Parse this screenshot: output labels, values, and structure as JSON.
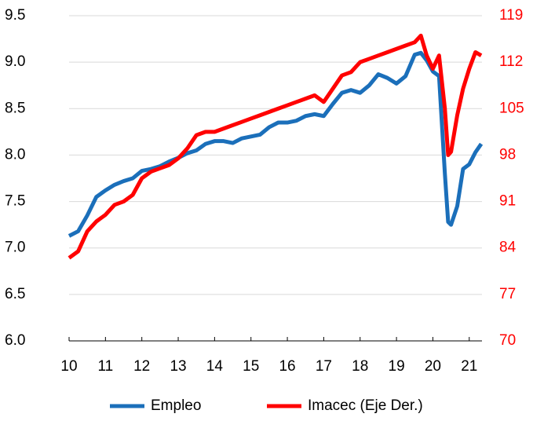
{
  "chart_data": {
    "type": "line",
    "x": [
      10.0,
      10.25,
      10.5,
      10.75,
      11.0,
      11.25,
      11.5,
      11.75,
      12.0,
      12.25,
      12.5,
      12.75,
      13.0,
      13.25,
      13.5,
      13.75,
      14.0,
      14.25,
      14.5,
      14.75,
      15.0,
      15.25,
      15.5,
      15.75,
      16.0,
      16.25,
      16.5,
      16.75,
      17.0,
      17.25,
      17.5,
      17.75,
      18.0,
      18.25,
      18.5,
      18.75,
      19.0,
      19.25,
      19.5,
      19.67,
      19.83,
      20.0,
      20.17,
      20.33,
      20.42,
      20.5,
      20.67,
      20.83,
      21.0,
      21.17,
      21.33
    ],
    "series": [
      {
        "name": "Empleo",
        "color": "#1b6fba",
        "values": [
          7.13,
          7.18,
          7.35,
          7.55,
          7.62,
          7.68,
          7.72,
          7.75,
          7.83,
          7.85,
          7.88,
          7.93,
          7.97,
          8.02,
          8.05,
          8.12,
          8.15,
          8.15,
          8.13,
          8.18,
          8.2,
          8.22,
          8.3,
          8.35,
          8.35,
          8.37,
          8.42,
          8.44,
          8.42,
          8.55,
          8.67,
          8.7,
          8.67,
          8.75,
          8.87,
          8.83,
          8.77,
          8.85,
          9.08,
          9.1,
          9.02,
          8.9,
          8.85,
          7.8,
          7.28,
          7.25,
          7.45,
          7.85,
          7.9,
          8.03,
          8.12
        ]
      },
      {
        "name": "Imacec (Eje Der.)",
        "color": "#ff0000",
        "axis": "y2",
        "values": [
          82.5,
          83.5,
          86.5,
          88,
          89,
          90.5,
          91,
          92,
          94.5,
          95.5,
          96,
          96.5,
          97.5,
          99,
          101,
          101.5,
          101.5,
          102,
          102.5,
          103,
          103.5,
          104,
          104.5,
          105,
          105.5,
          106,
          106.5,
          107,
          106,
          108,
          110,
          110.5,
          112,
          112.5,
          113,
          113.5,
          114,
          114.5,
          115,
          116,
          113,
          111,
          113,
          105,
          98,
          98.5,
          104,
          108,
          111,
          113.5,
          113
        ]
      }
    ],
    "xlim": [
      10,
      21.35
    ],
    "xticks": [
      10,
      11,
      12,
      13,
      14,
      15,
      16,
      17,
      18,
      19,
      20,
      21
    ],
    "ylim": [
      6.0,
      9.5
    ],
    "yticks": [
      {
        "value": 6,
        "label": "6.0"
      },
      6.5,
      {
        "value": 7,
        "label": "7.0"
      },
      7.5,
      {
        "value": 8,
        "label": "8.0"
      },
      8.5,
      {
        "value": 9,
        "label": "9.0"
      },
      9.5
    ],
    "y2lim": [
      70,
      119
    ],
    "y2ticks": [
      70,
      77,
      84,
      91,
      98,
      105,
      112,
      119
    ],
    "y2_color": "#ff0000",
    "grid": true,
    "legend": "bottom"
  }
}
